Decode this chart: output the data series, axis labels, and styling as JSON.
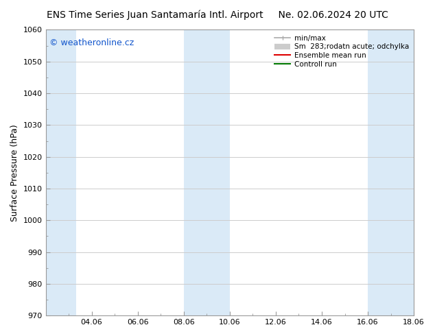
{
  "title_left": "ENS Time Series Juan Santamaría Intl. Airport",
  "title_right": "Ne. 02.06.2024 20 UTC",
  "ylabel": "Surface Pressure (hPa)",
  "ylim": [
    970,
    1060
  ],
  "yticks": [
    970,
    980,
    990,
    1000,
    1010,
    1020,
    1030,
    1040,
    1050,
    1060
  ],
  "xlim": [
    0,
    16
  ],
  "xtick_labels": [
    "04.06",
    "06.06",
    "08.06",
    "10.06",
    "12.06",
    "14.06",
    "16.06",
    "18.06"
  ],
  "xtick_positions": [
    2,
    4,
    6,
    8,
    10,
    12,
    14,
    16
  ],
  "shaded_bands": [
    {
      "x_start": 0,
      "x_end": 1.33
    },
    {
      "x_start": 6,
      "x_end": 8
    },
    {
      "x_start": 14,
      "x_end": 16
    }
  ],
  "band_color": "#daeaf7",
  "watermark_text": "© weatheronline.cz",
  "watermark_color": "#1155cc",
  "bg_color": "#ffffff",
  "spine_color": "#999999",
  "grid_color": "#cccccc",
  "title_fontsize": 10,
  "ylabel_fontsize": 9,
  "tick_fontsize": 8,
  "watermark_fontsize": 9,
  "legend_fontsize": 7.5,
  "legend_entries": [
    {
      "label": "min/max",
      "color": "#aaaaaa",
      "lw": 1.2
    },
    {
      "label": "Sm  283;rodatn acute; odchylka",
      "color": "#cccccc",
      "lw": 6
    },
    {
      "label": "Ensemble mean run",
      "color": "#dd0000",
      "lw": 1.5
    },
    {
      "label": "Controll run",
      "color": "#007700",
      "lw": 1.5
    }
  ]
}
